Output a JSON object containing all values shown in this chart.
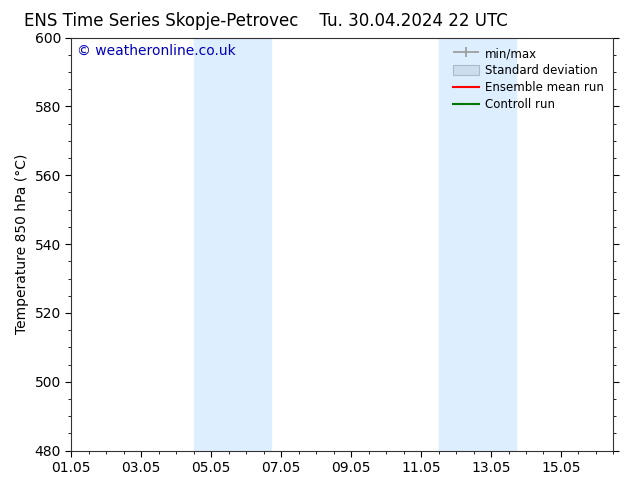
{
  "title_left": "ENS Time Series Skopje-Petrovec",
  "title_right": "Tu. 30.04.2024 22 UTC",
  "ylabel": "Temperature 850 hPa (°C)",
  "ylim": [
    480,
    600
  ],
  "yticks": [
    480,
    500,
    520,
    540,
    560,
    580,
    600
  ],
  "xlim": [
    0,
    15.5
  ],
  "xtick_positions": [
    0,
    2,
    4,
    6,
    8,
    10,
    12,
    14
  ],
  "xlabel_dates": [
    "01.05",
    "03.05",
    "05.05",
    "07.05",
    "09.05",
    "11.05",
    "13.05",
    "15.05"
  ],
  "watermark": "© weatheronline.co.uk",
  "watermark_color": "#0000bb",
  "bg_color": "#ffffff",
  "plot_bg_color": "#ffffff",
  "shaded_bands": [
    {
      "xmin": 3.5,
      "xmax": 5.7,
      "color": "#ddeeff"
    },
    {
      "xmin": 10.5,
      "xmax": 12.7,
      "color": "#ddeeff"
    }
  ],
  "legend_labels": [
    "min/max",
    "Standard deviation",
    "Ensemble mean run",
    "Controll run"
  ],
  "legend_colors": [
    "#999999",
    "#ccddf0",
    "#ff0000",
    "#007700"
  ],
  "font_size": 10,
  "title_font_size": 12,
  "tick_font_size": 10
}
